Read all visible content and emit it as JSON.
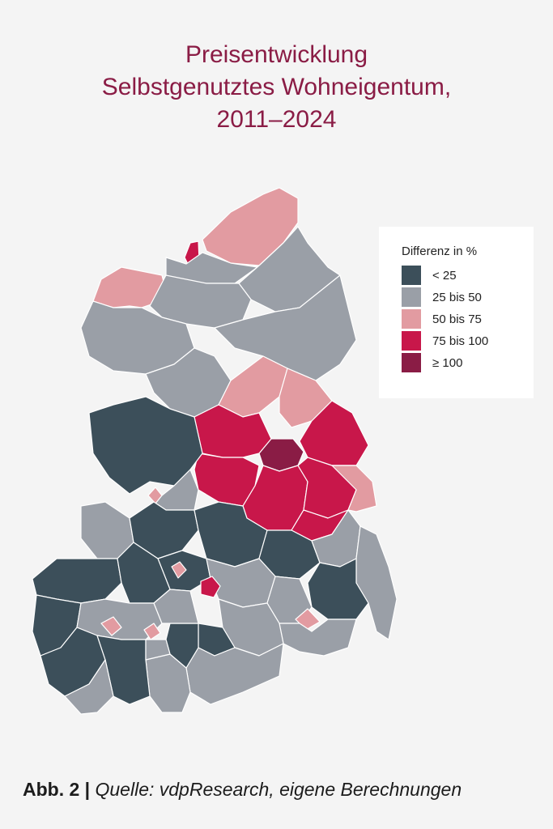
{
  "title_lines": [
    "Preisentwicklung",
    "Selbstgenutztes Wohneigentum,",
    "2011–2024"
  ],
  "legend": {
    "title": "Differenz in %",
    "items": [
      {
        "label": "< 25",
        "color": "#3c4f5a"
      },
      {
        "label": "25 bis 50",
        "color": "#9a9fa7"
      },
      {
        "label": "50 bis 75",
        "color": "#e29ba1"
      },
      {
        "label": "75 bis 100",
        "color": "#c8174a"
      },
      {
        "label": "≥ 100",
        "color": "#8a1c45"
      }
    ]
  },
  "caption": {
    "prefix": "Abb. 2 |",
    "source": "Quelle: vdpResearch, eigene Berechnungen"
  }
}
